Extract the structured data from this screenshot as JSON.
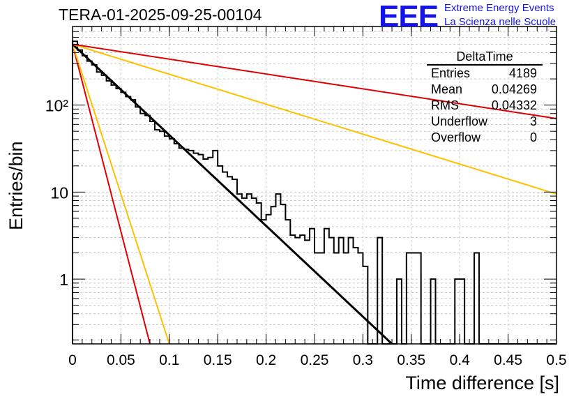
{
  "header": {
    "title": "TERA-01-2025-09-25-00104",
    "logo": "EEE",
    "logo_line1": "Extreme Energy Events",
    "logo_line2": "La Scienza nelle Scuole"
  },
  "stats": {
    "title": "DeltaTime",
    "rows": [
      {
        "label": "Entries",
        "value": "4189"
      },
      {
        "label": "Mean",
        "value": "0.04269"
      },
      {
        "label": "RMS",
        "value": "0.04332"
      },
      {
        "label": "Underflow",
        "value": "3"
      },
      {
        "label": "Overflow",
        "value": "0"
      }
    ]
  },
  "chart_data": {
    "type": "histogram",
    "title": "TERA-01-2025-09-25-00104",
    "xlabel": "Time difference [s]",
    "ylabel": "Entries/bin",
    "xlim": [
      0,
      0.5
    ],
    "ylim": [
      0.18,
      800
    ],
    "yscale": "log",
    "grid": true,
    "colors": {
      "histogram": "#000000",
      "fit": "#000000",
      "red": "#e00000",
      "orange": "#ffc000"
    },
    "x_ticks": [
      "0",
      "0.05",
      "0.1",
      "0.15",
      "0.2",
      "0.25",
      "0.3",
      "0.35",
      "0.4",
      "0.45",
      "0.5"
    ],
    "y_ticks": [
      {
        "value": 1,
        "label": "1"
      },
      {
        "value": 10,
        "label": "10"
      },
      {
        "value": 100,
        "label": "10²"
      }
    ],
    "bin_width": 0.005,
    "histogram": [
      540,
      430,
      370,
      320,
      290,
      240,
      220,
      190,
      170,
      155,
      140,
      125,
      115,
      95,
      80,
      76,
      65,
      52,
      50,
      44,
      41,
      36,
      32,
      31,
      30,
      28,
      27,
      24,
      25,
      30,
      20,
      17,
      15,
      14,
      9.5,
      8.5,
      9.5,
      8.5,
      7.5,
      4.8,
      5.5,
      6.8,
      9.5,
      7.2,
      4.8,
      3.2,
      3.0,
      3.2,
      2.8,
      3.8,
      2.0,
      2.0,
      3.8,
      3.0,
      2.0,
      3.0,
      2.0,
      3.0,
      2.3,
      2.0,
      1.4,
      0.0,
      0.0,
      3.0,
      0.0,
      0.0,
      0.0,
      1.0,
      0.0,
      2.0,
      2.0,
      2.0,
      0.0,
      0.0,
      1.0,
      0.0,
      0.0,
      0.0,
      0.0,
      1.0,
      1.0,
      0.0,
      0.0,
      2.0,
      0.0,
      0.0,
      0.0,
      0.0,
      0.0,
      0.0,
      0.0,
      0.0,
      0.0,
      0.0,
      0.0,
      0.0,
      0.0,
      0.0,
      0.0,
      0.0
    ],
    "series": [
      {
        "name": "red-steep",
        "color": "#e00000",
        "points": [
          [
            0,
            500
          ],
          [
            0.08,
            0.18
          ]
        ]
      },
      {
        "name": "orange-steep",
        "color": "#ffc000",
        "points": [
          [
            0,
            500
          ],
          [
            0.1,
            0.18
          ]
        ]
      },
      {
        "name": "fit",
        "color": "#000000",
        "points": [
          [
            0,
            500
          ],
          [
            0.33,
            0.18
          ]
        ]
      },
      {
        "name": "orange-shallow",
        "color": "#ffc000",
        "points": [
          [
            0,
            500
          ],
          [
            0.5,
            9.5
          ]
        ]
      },
      {
        "name": "red-shallow",
        "color": "#e00000",
        "points": [
          [
            0,
            500
          ],
          [
            0.5,
            70
          ]
        ]
      }
    ]
  },
  "labels": {
    "x_axis": "Time difference [s]",
    "y_axis": "Entries/bin"
  }
}
